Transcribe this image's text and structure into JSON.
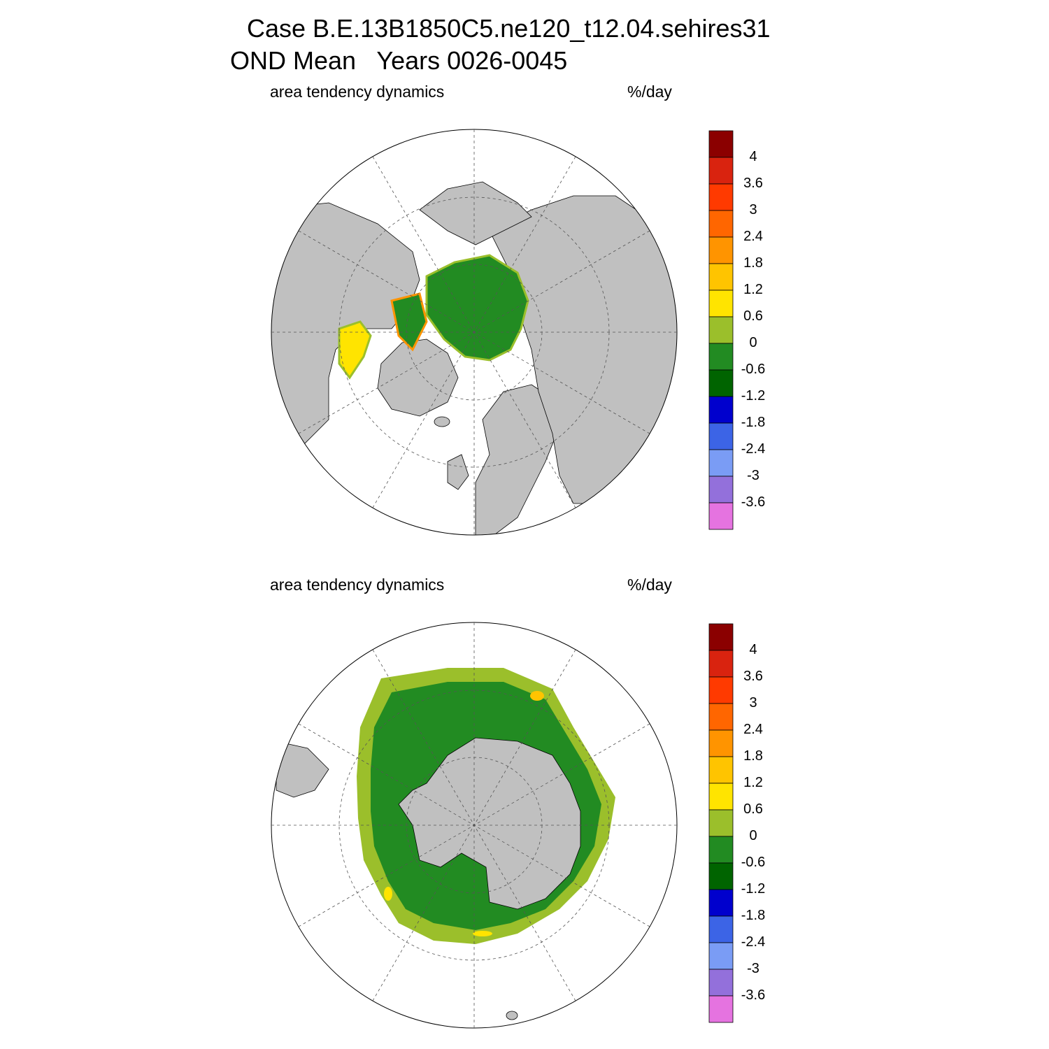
{
  "title": {
    "line1": "Case B.E.13B1850C5.ne120_t12.04.sehires31",
    "line2": "OND Mean   Years 0026-0045"
  },
  "panels": [
    {
      "name": "north",
      "left_label": "area tendency dynamics",
      "right_label": "%/day"
    },
    {
      "name": "south",
      "left_label": "area tendency dynamics",
      "right_label": "%/day"
    }
  ],
  "colorbar": {
    "labels": [
      "4",
      "3.6",
      "3",
      "2.4",
      "1.8",
      "1.2",
      "0.6",
      "0",
      "-0.6",
      "-1.2",
      "-1.8",
      "-2.4",
      "-3",
      "-3.6"
    ],
    "colors": [
      "#8b0000",
      "#d9230f",
      "#ff3a00",
      "#ff6600",
      "#ff9400",
      "#ffc400",
      "#ffe400",
      "#9bbf2b",
      "#228b22",
      "#006400",
      "#0000cd",
      "#3c64e6",
      "#7a9cf5",
      "#9370db",
      "#e573e0"
    ]
  },
  "map_colors": {
    "land": "#c0c0c0",
    "ocean": "#ffffff",
    "ice": "#228b22",
    "ice_edge": "#9bbf2b",
    "coast": "#000000"
  }
}
